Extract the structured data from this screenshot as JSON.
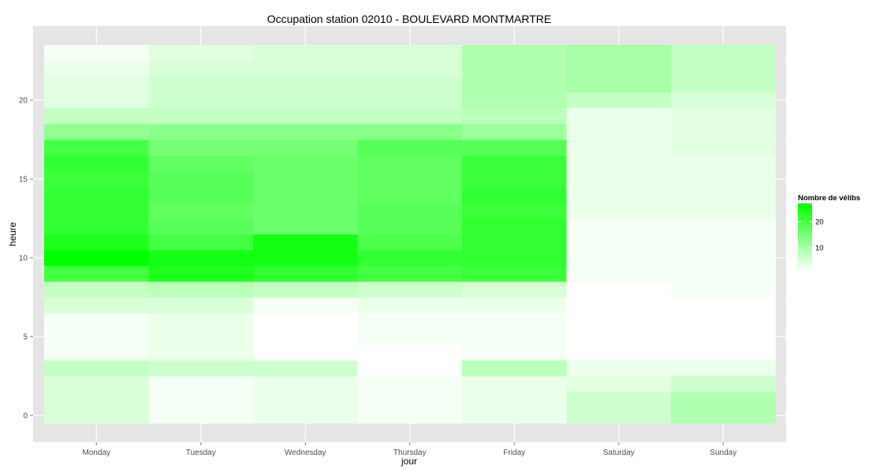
{
  "chart_data": {
    "type": "heatmap",
    "title": "Occupation station 02010 - BOULEVARD MONTMARTRE",
    "xlabel": "jour",
    "ylabel": "heure",
    "x_categories": [
      "Monday",
      "Tuesday",
      "Wednesday",
      "Thursday",
      "Friday",
      "Saturday",
      "Sunday"
    ],
    "y_values": [
      0,
      1,
      2,
      3,
      4,
      5,
      6,
      7,
      8,
      9,
      10,
      11,
      12,
      13,
      14,
      15,
      16,
      17,
      18,
      19,
      20,
      21,
      22,
      23
    ],
    "y_ticks": [
      0,
      5,
      10,
      15,
      20
    ],
    "ylim": [
      -0.5,
      23.5
    ],
    "grid": true,
    "legend": {
      "title": "Nombre de vélibs",
      "ticks": [
        10,
        20
      ],
      "range": [
        1,
        27
      ],
      "low_color": "#ffffff",
      "high_color": "#00ff00",
      "placement": "right"
    },
    "values": [
      [
        5,
        5,
        5,
        7,
        2,
        2,
        2,
        5,
        7,
        20,
        27,
        24,
        22,
        22,
        22,
        21,
        22,
        20,
        12,
        7,
        4,
        4,
        3,
        2
      ],
      [
        2,
        2,
        2,
        6,
        3,
        3,
        3,
        5,
        8,
        24,
        25,
        20,
        18,
        17,
        18,
        18,
        17,
        15,
        13,
        7,
        6,
        6,
        5,
        4
      ],
      [
        3,
        3,
        3,
        6,
        1,
        1,
        1,
        2,
        7,
        22,
        25,
        25,
        16,
        16,
        16,
        16,
        16,
        15,
        13,
        7,
        6,
        6,
        5,
        5
      ],
      [
        2,
        2,
        2,
        1,
        1,
        2,
        2,
        3,
        6,
        20,
        22,
        19,
        18,
        18,
        17,
        17,
        17,
        18,
        13,
        7,
        6,
        6,
        5,
        5
      ],
      [
        3,
        3,
        3,
        8,
        2,
        2,
        2,
        3,
        5,
        21,
        22,
        22,
        22,
        21,
        22,
        21,
        21,
        18,
        11,
        8,
        9,
        9,
        9,
        9
      ],
      [
        6,
        6,
        4,
        3,
        1,
        1,
        1,
        1,
        1,
        2,
        2,
        2,
        2,
        3,
        3,
        3,
        3,
        3,
        3,
        3,
        7,
        10,
        10,
        10
      ],
      [
        9,
        9,
        6,
        3,
        1,
        1,
        1,
        1,
        2,
        2,
        2,
        2,
        2,
        3,
        3,
        3,
        3,
        4,
        4,
        4,
        5,
        7,
        7,
        7
      ]
    ]
  }
}
